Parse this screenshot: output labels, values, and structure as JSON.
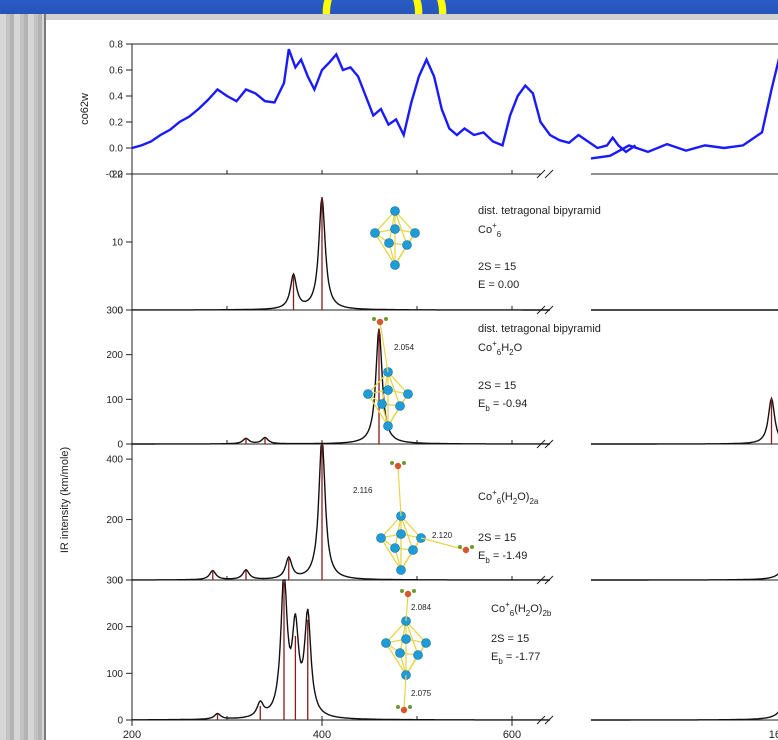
{
  "slide": {
    "title_fragment": "( , ))"
  },
  "chart_data": {
    "type": "line",
    "ylabel": "IR intensity (km/mole)",
    "x_ticks": [
      "200",
      "400",
      "600",
      "1600"
    ],
    "x_break": [
      640,
      750
    ],
    "panels": [
      {
        "id": "exp",
        "ylabel": "co62w",
        "yticks": [
          "0.8",
          "0.6",
          "0.4",
          "0.2",
          "0.0",
          "-0.2"
        ],
        "series": [
          {
            "values": [
              [
                200,
                0.0
              ],
              [
                210,
                0.02
              ],
              [
                220,
                0.05
              ],
              [
                230,
                0.1
              ],
              [
                240,
                0.14
              ],
              [
                250,
                0.2
              ],
              [
                260,
                0.24
              ],
              [
                270,
                0.3
              ],
              [
                280,
                0.37
              ],
              [
                290,
                0.45
              ],
              [
                300,
                0.4
              ],
              [
                310,
                0.36
              ],
              [
                320,
                0.45
              ],
              [
                330,
                0.42
              ],
              [
                340,
                0.36
              ],
              [
                350,
                0.35
              ],
              [
                360,
                0.5
              ],
              [
                365,
                0.76
              ],
              [
                372,
                0.62
              ],
              [
                378,
                0.68
              ],
              [
                385,
                0.55
              ],
              [
                392,
                0.45
              ],
              [
                400,
                0.6
              ],
              [
                408,
                0.66
              ],
              [
                415,
                0.72
              ],
              [
                422,
                0.6
              ],
              [
                430,
                0.62
              ],
              [
                438,
                0.55
              ],
              [
                446,
                0.4
              ],
              [
                454,
                0.25
              ],
              [
                462,
                0.3
              ],
              [
                470,
                0.18
              ],
              [
                478,
                0.22
              ],
              [
                486,
                0.1
              ],
              [
                494,
                0.35
              ],
              [
                502,
                0.55
              ],
              [
                510,
                0.68
              ],
              [
                518,
                0.55
              ],
              [
                526,
                0.3
              ],
              [
                534,
                0.15
              ],
              [
                542,
                0.1
              ],
              [
                550,
                0.15
              ],
              [
                560,
                0.1
              ],
              [
                570,
                0.12
              ],
              [
                580,
                0.05
              ],
              [
                590,
                0.02
              ],
              [
                598,
                0.25
              ],
              [
                606,
                0.4
              ],
              [
                614,
                0.48
              ],
              [
                622,
                0.42
              ],
              [
                630,
                0.2
              ],
              [
                640,
                0.1
              ],
              [
                650,
                0.06
              ],
              [
                660,
                0.04
              ],
              [
                670,
                0.1
              ],
              [
                680,
                0.05
              ],
              [
                690,
                0.0
              ],
              [
                700,
                0.02
              ],
              [
                706,
                0.08
              ],
              [
                712,
                0.02
              ],
              [
                720,
                -0.03
              ],
              [
                730,
                0.02
              ]
            ],
            "values_right": [
              [
                1400,
                -0.08
              ],
              [
                1420,
                -0.06
              ],
              [
                1440,
                0.02
              ],
              [
                1460,
                -0.03
              ],
              [
                1480,
                0.03
              ],
              [
                1500,
                -0.02
              ],
              [
                1520,
                0.02
              ],
              [
                1540,
                0.0
              ],
              [
                1560,
                0.02
              ],
              [
                1580,
                0.12
              ],
              [
                1590,
                0.45
              ],
              [
                1600,
                0.75
              ],
              [
                1610,
                0.42
              ],
              [
                1620,
                0.1
              ],
              [
                1635,
                0.02
              ],
              [
                1650,
                0.0
              ],
              [
                1665,
                0.05
              ],
              [
                1680,
                -0.02
              ],
              [
                1695,
                0.03
              ],
              [
                1710,
                0.0
              ],
              [
                1720,
                -0.04
              ]
            ]
          }
        ]
      },
      {
        "id": "c1",
        "yticks": [
          "20",
          "10",
          "0"
        ],
        "lines": [
          [
            370,
            5
          ],
          [
            400,
            16.5
          ]
        ],
        "lines_right": [],
        "annotations": [
          "dist. tetragonal bipyramid",
          "Co",
          "2S = 15",
          "E",
          "= 0.00"
        ],
        "labels": {
          "title": "dist. tetragonal bipyramid",
          "formula": "Co",
          "sup": "+",
          "sub": "6",
          "spin": "2S = 15",
          "energy_label": "E",
          "energy_value": "= 0.00"
        }
      },
      {
        "id": "c2",
        "yticks": [
          "300",
          "200",
          "100",
          "0"
        ],
        "lines": [
          [
            320,
            12
          ],
          [
            460,
            258
          ],
          [
            340,
            14
          ]
        ],
        "lines_right": [
          [
            1590,
            102
          ]
        ],
        "labels": {
          "title": "dist. tetragonal bipyramid",
          "formula": "Co",
          "sup": "+",
          "sub": "6",
          "tail_a": "H",
          "tail_sub": "2",
          "tail_b": "O",
          "spin": "2S = 15",
          "energy_label": "E",
          "energy_sub": "b",
          "energy_value": "= -0.94",
          "bond": "2.054"
        }
      },
      {
        "id": "c3",
        "yticks": [
          "400",
          "200",
          "0"
        ],
        "lines": [
          [
            285,
            30
          ],
          [
            320,
            32
          ],
          [
            365,
            70
          ],
          [
            400,
            470
          ]
        ],
        "lines_right": [
          [
            1610,
            230
          ]
        ],
        "labels": {
          "formula": "Co",
          "sup": "+",
          "sub": "6",
          "tail_a": "(H",
          "tail_sub": "2",
          "tail_b": "O)",
          "tail_sub2": "2a",
          "spin": "2S = 15",
          "energy_label": "E",
          "energy_sub": "b",
          "energy_value": "= -1.49",
          "bond_a": "2.116",
          "bond_b": "2.120"
        }
      },
      {
        "id": "c4",
        "yticks": [
          "300",
          "200",
          "100",
          "0"
        ],
        "lines": [
          [
            290,
            12
          ],
          [
            335,
            30
          ],
          [
            360,
            295
          ],
          [
            372,
            180
          ],
          [
            385,
            215
          ]
        ],
        "lines_right": [
          [
            1610,
            190
          ]
        ],
        "labels": {
          "formula": "Co",
          "sup": "+",
          "sub": "6",
          "tail_a": "(H",
          "tail_sub": "2",
          "tail_b": "O)",
          "tail_sub2": "2b",
          "spin": "2S = 15",
          "energy_label": "E",
          "energy_sub": "b",
          "energy_value": "= -1.77",
          "bond_a": "2.084",
          "bond_b": "2.075"
        }
      }
    ]
  },
  "colors": {
    "experiment": "#1a1aff",
    "stick": "#8b1a1a",
    "spectrum": "#111111",
    "atom": "#1e9cd7",
    "bond": "#e8d44a",
    "oxygen": "#d8562e",
    "hydrogen": "#6b9a2e"
  }
}
